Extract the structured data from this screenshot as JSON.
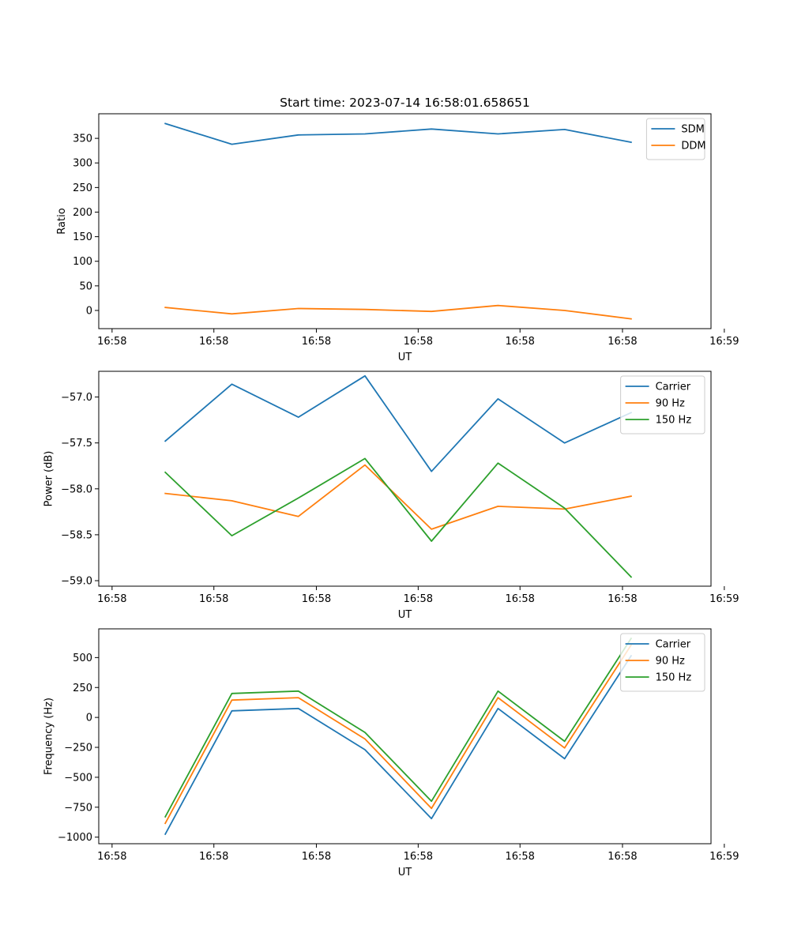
{
  "figure": {
    "title": "Start time: 2023-07-14 16:58:01.658651"
  },
  "colors": {
    "blue": "#1f77b4",
    "orange": "#ff7f0e",
    "green": "#2ca02c"
  },
  "chart_data": [
    {
      "type": "line",
      "title": "Start time: 2023-07-14 16:58:01.658651",
      "xlabel": "UT",
      "ylabel": "Ratio",
      "x": [
        1,
        2,
        3,
        4,
        5,
        6,
        7,
        8
      ],
      "xlim": [
        0,
        9.2
      ],
      "x_ticks": [
        0.2,
        1.73,
        3.27,
        4.8,
        6.33,
        7.87,
        9.4
      ],
      "x_tick_labels": [
        "16:58",
        "16:58",
        "16:58",
        "16:58",
        "16:58",
        "16:58",
        "16:59"
      ],
      "ylim": [
        -37,
        400
      ],
      "y_ticks": [
        0,
        50,
        100,
        150,
        200,
        250,
        300,
        350
      ],
      "y_tick_labels": [
        "0",
        "50",
        "100",
        "150",
        "200",
        "250",
        "300",
        "350"
      ],
      "legend_position": "top-right",
      "series": [
        {
          "name": "SDM",
          "color": "#1f77b4",
          "values": [
            380,
            338,
            357,
            359,
            369,
            359,
            368,
            342
          ]
        },
        {
          "name": "DDM",
          "color": "#ff7f0e",
          "values": [
            6,
            -7,
            4,
            2,
            -2,
            10,
            0,
            -17
          ]
        }
      ]
    },
    {
      "type": "line",
      "title": "",
      "xlabel": "UT",
      "ylabel": "Power (dB)",
      "x": [
        1,
        2,
        3,
        4,
        5,
        6,
        7,
        8
      ],
      "xlim": [
        0,
        9.2
      ],
      "x_ticks": [
        0.2,
        1.73,
        3.27,
        4.8,
        6.33,
        7.87,
        9.4
      ],
      "x_tick_labels": [
        "16:58",
        "16:58",
        "16:58",
        "16:58",
        "16:58",
        "16:58",
        "16:59"
      ],
      "ylim": [
        -59.06,
        -56.72
      ],
      "y_ticks": [
        -59.0,
        -58.5,
        -58.0,
        -57.5,
        -57.0
      ],
      "y_tick_labels": [
        "−59.0",
        "−58.5",
        "−58.0",
        "−57.5",
        "−57.0"
      ],
      "legend_position": "top-right",
      "series": [
        {
          "name": "Carrier",
          "color": "#1f77b4",
          "values": [
            -57.48,
            -56.86,
            -57.22,
            -56.77,
            -57.81,
            -57.02,
            -57.5,
            -57.17
          ]
        },
        {
          "name": "90 Hz",
          "color": "#ff7f0e",
          "values": [
            -58.05,
            -58.13,
            -58.3,
            -57.74,
            -58.44,
            -58.19,
            -58.22,
            -58.08
          ]
        },
        {
          "name": "150 Hz",
          "color": "#2ca02c",
          "values": [
            -57.82,
            -58.51,
            -58.1,
            -57.67,
            -58.57,
            -57.72,
            -58.21,
            -58.96
          ]
        }
      ]
    },
    {
      "type": "line",
      "title": "",
      "xlabel": "UT",
      "ylabel": "Frequency (Hz)",
      "x": [
        1,
        2,
        3,
        4,
        5,
        6,
        7,
        8
      ],
      "xlim": [
        0,
        9.2
      ],
      "x_ticks": [
        0.2,
        1.73,
        3.27,
        4.8,
        6.33,
        7.87,
        9.4
      ],
      "x_tick_labels": [
        "16:58",
        "16:58",
        "16:58",
        "16:58",
        "16:58",
        "16:58",
        "16:59"
      ],
      "ylim": [
        -1055,
        740
      ],
      "y_ticks": [
        -1000,
        -750,
        -500,
        -250,
        0,
        250,
        500
      ],
      "y_tick_labels": [
        "−1000",
        "−750",
        "−500",
        "−250",
        "0",
        "250",
        "500"
      ],
      "legend_position": "top-right",
      "series": [
        {
          "name": "Carrier",
          "color": "#1f77b4",
          "values": [
            -975,
            55,
            75,
            -270,
            -845,
            75,
            -345,
            515
          ]
        },
        {
          "name": "90 Hz",
          "color": "#ff7f0e",
          "values": [
            -885,
            145,
            165,
            -180,
            -760,
            165,
            -255,
            605
          ]
        },
        {
          "name": "150 Hz",
          "color": "#2ca02c",
          "values": [
            -830,
            200,
            220,
            -125,
            -700,
            220,
            -200,
            660
          ]
        }
      ]
    }
  ]
}
